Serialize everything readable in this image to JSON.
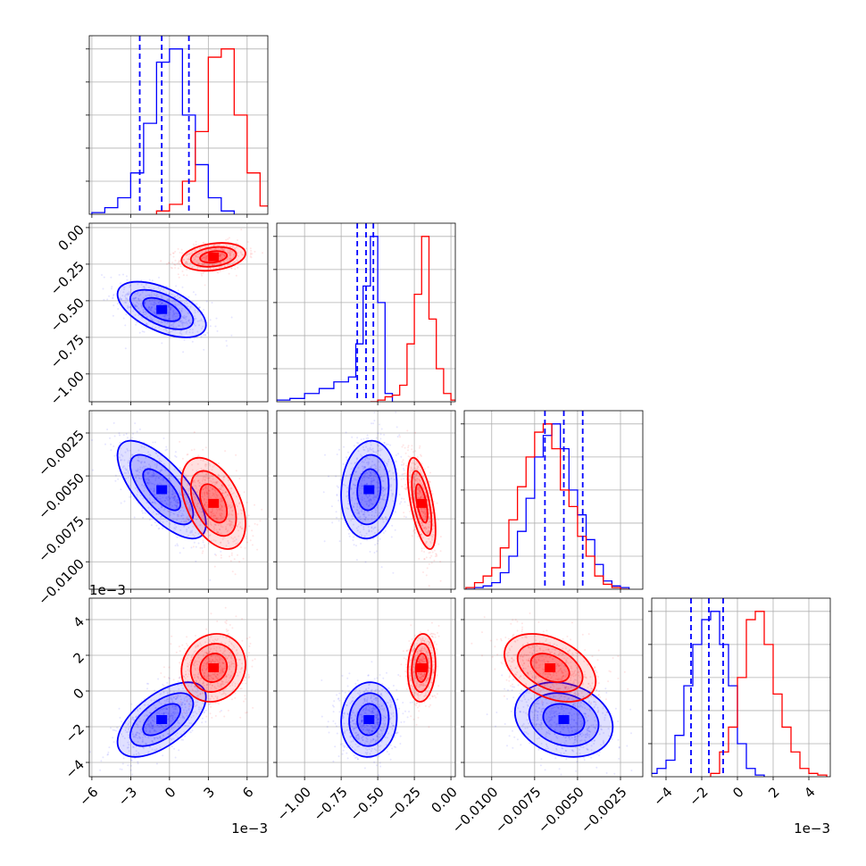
{
  "chart_data": {
    "type": "corner",
    "colors": {
      "blue": "#0000ff",
      "red": "#ff0000",
      "grid": "#b0b0b0"
    },
    "series_colors": [
      "#0000ff",
      "#ff0000"
    ],
    "grid": true,
    "params": [
      {
        "range": [
          -6.2,
          7.6
        ],
        "ticks": [
          -6,
          -3,
          0,
          3,
          6
        ],
        "tick_labels": [
          "−6",
          "−3",
          "0",
          "3",
          "6"
        ],
        "offset_label": "1e−3"
      },
      {
        "range": [
          -1.19,
          0.03
        ],
        "ticks": [
          -1.0,
          -0.75,
          -0.5,
          -0.25,
          0.0
        ],
        "tick_labels": [
          "−1.00",
          "−0.75",
          "−0.50",
          "−0.25",
          "0.00"
        ],
        "offset_label": ""
      },
      {
        "range": [
          -0.0116,
          -0.0012
        ],
        "ticks": [
          -0.01,
          -0.0075,
          -0.005,
          -0.0025
        ],
        "tick_labels": [
          "−0.0100",
          "−0.0075",
          "−0.0050",
          "−0.0025"
        ],
        "offset_label": ""
      },
      {
        "range": [
          -4.8,
          5.2
        ],
        "ticks": [
          -4,
          -2,
          0,
          2,
          4
        ],
        "tick_labels": [
          "−4",
          "−2",
          "0",
          "2",
          "4"
        ],
        "offset_label": "1e−3"
      }
    ],
    "series": [
      {
        "color": "blue",
        "mean": [
          -0.6,
          -0.56,
          -0.0058,
          -1.6
        ],
        "std": [
          1.8,
          0.1,
          0.0015,
          1.1
        ],
        "correlations": {
          "1-0": -0.55,
          "2-0": -0.7,
          "2-1": 0.1,
          "3-0": 0.6,
          "3-1": 0.05,
          "3-2": -0.2
        },
        "quantiles": [
          [
            -2.3,
            -0.6,
            1.5
          ],
          [
            -0.64,
            -0.58,
            -0.53
          ],
          [
            -0.0069,
            -0.0058,
            -0.0047
          ],
          [
            -2.6,
            -1.6,
            -0.8
          ]
        ],
        "histograms": [
          {
            "bins": [
              -6,
              -5,
              -4,
              -3,
              -2,
              -1,
              0,
              1,
              2,
              3,
              4,
              5
            ],
            "counts": [
              0.01,
              0.04,
              0.1,
              0.25,
              0.55,
              0.92,
              1.0,
              0.6,
              0.3,
              0.1,
              0.02
            ]
          },
          {
            "bins": [
              -1.2,
              -1.1,
              -1.0,
              -0.9,
              -0.8,
              -0.7,
              -0.65,
              -0.6,
              -0.55,
              -0.5,
              -0.45,
              -0.4
            ],
            "counts": [
              0.01,
              0.02,
              0.05,
              0.08,
              0.12,
              0.15,
              0.35,
              0.7,
              1.0,
              0.6,
              0.05
            ]
          },
          {
            "bins": [
              -0.0115,
              -0.011,
              -0.0105,
              -0.01,
              -0.0095,
              -0.009,
              -0.0085,
              -0.008,
              -0.0075,
              -0.007,
              -0.0065,
              -0.006,
              -0.0055,
              -0.005,
              -0.0045,
              -0.004,
              -0.0035,
              -0.003,
              -0.0025,
              -0.002
            ],
            "counts": [
              0.0,
              0.01,
              0.02,
              0.04,
              0.1,
              0.2,
              0.35,
              0.55,
              0.8,
              0.93,
              1.0,
              0.85,
              0.6,
              0.45,
              0.3,
              0.15,
              0.05,
              0.02,
              0.01
            ]
          },
          {
            "bins": [
              -5,
              -4.5,
              -4,
              -3.5,
              -3,
              -2.5,
              -2,
              -1.5,
              -1,
              -0.5,
              0,
              0.5,
              1,
              1.5
            ],
            "counts": [
              0.02,
              0.05,
              0.1,
              0.25,
              0.55,
              0.8,
              0.95,
              1.0,
              0.8,
              0.55,
              0.2,
              0.05,
              0.01
            ]
          }
        ]
      },
      {
        "color": "red",
        "mean": [
          3.4,
          -0.2,
          -0.0066,
          1.3
        ],
        "std": [
          1.3,
          0.05,
          0.0014,
          1.0
        ],
        "correlations": {
          "1-0": 0.25,
          "2-0": -0.45,
          "2-1": -0.6,
          "3-0": 0.1,
          "3-1": 0.1,
          "3-2": -0.4
        },
        "histograms": [
          {
            "bins": [
              -1,
              0,
              1,
              2,
              3,
              4,
              5,
              6,
              7,
              8
            ],
            "counts": [
              0.02,
              0.06,
              0.2,
              0.5,
              0.95,
              1.0,
              0.6,
              0.25,
              0.05
            ]
          },
          {
            "bins": [
              -0.55,
              -0.5,
              -0.45,
              -0.4,
              -0.35,
              -0.3,
              -0.25,
              -0.2,
              -0.15,
              -0.1,
              -0.05,
              0.0,
              0.05
            ],
            "counts": [
              0.0,
              0.01,
              0.03,
              0.04,
              0.1,
              0.35,
              0.65,
              1.0,
              0.5,
              0.2,
              0.05,
              0.01
            ]
          },
          {
            "bins": [
              -0.0115,
              -0.011,
              -0.0105,
              -0.01,
              -0.0095,
              -0.009,
              -0.0085,
              -0.008,
              -0.0075,
              -0.007,
              -0.0065,
              -0.006,
              -0.0055,
              -0.005,
              -0.0045,
              -0.004,
              -0.0035,
              -0.003,
              -0.0025,
              -0.002
            ],
            "counts": [
              0.01,
              0.04,
              0.08,
              0.13,
              0.25,
              0.42,
              0.62,
              0.8,
              0.95,
              1.0,
              0.85,
              0.6,
              0.5,
              0.32,
              0.2,
              0.08,
              0.03,
              0.01,
              0.0
            ]
          },
          {
            "bins": [
              -1.5,
              -1,
              -0.5,
              0,
              0.5,
              1,
              1.5,
              2,
              2.5,
              3,
              3.5,
              4,
              4.5,
              5
            ],
            "counts": [
              0.02,
              0.15,
              0.3,
              0.6,
              0.95,
              1.0,
              0.8,
              0.5,
              0.3,
              0.15,
              0.05,
              0.02,
              0.01
            ]
          }
        ]
      }
    ]
  }
}
